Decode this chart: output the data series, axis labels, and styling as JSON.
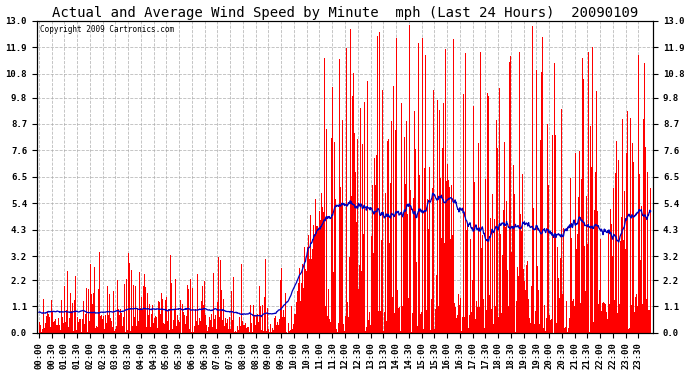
{
  "title": "Actual and Average Wind Speed by Minute  mph (Last 24 Hours)  20090109",
  "copyright": "Copyright 2009 Cartronics.com",
  "yticks": [
    0.0,
    1.1,
    2.2,
    3.2,
    4.3,
    5.4,
    6.5,
    7.6,
    8.7,
    9.8,
    10.8,
    11.9,
    13.0
  ],
  "ylim": [
    0.0,
    13.0
  ],
  "bar_color": "#FF0000",
  "line_color": "#0000BB",
  "bg_color": "#FFFFFF",
  "grid_color": "#AAAAAA",
  "title_fontsize": 10,
  "tick_fontsize": 6.5,
  "n_minutes": 1440,
  "xtick_interval": 30,
  "figwidth": 6.9,
  "figheight": 3.75,
  "dpi": 100
}
